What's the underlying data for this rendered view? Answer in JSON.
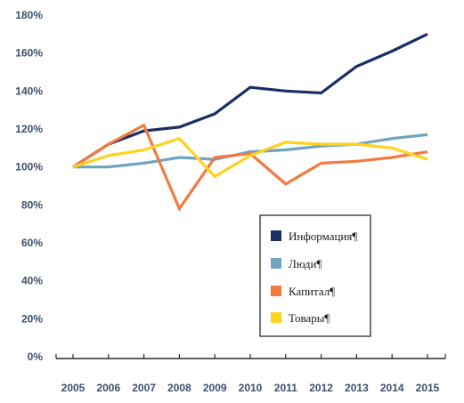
{
  "chart_data": {
    "type": "line",
    "title": "",
    "xlabel": "",
    "ylabel": "",
    "x": [
      "2005",
      "2006",
      "2007",
      "2008",
      "2009",
      "2010",
      "2011",
      "2012",
      "2013",
      "2014",
      "2015"
    ],
    "ylim": [
      0,
      180
    ],
    "yticks": [
      "0%",
      "20%",
      "40%",
      "60%",
      "80%",
      "100%",
      "120%",
      "140%",
      "160%",
      "180%"
    ],
    "ytick_values": [
      0,
      20,
      40,
      60,
      80,
      100,
      120,
      140,
      160,
      180
    ],
    "grid": false,
    "legend_position": "right-middle",
    "series": [
      {
        "name": "Информация¶",
        "color": "#1b2f66",
        "values": [
          100,
          112,
          119,
          121,
          128,
          142,
          140,
          139,
          153,
          161,
          170
        ]
      },
      {
        "name": "Люди¶",
        "color": "#6fa3bf",
        "values": [
          100,
          100,
          102,
          105,
          104,
          108,
          109,
          111,
          112,
          115,
          117
        ]
      },
      {
        "name": "Капитал¶",
        "color": "#f07a3f",
        "values": [
          100,
          112,
          122,
          78,
          105,
          107,
          91,
          102,
          103,
          105,
          108
        ]
      },
      {
        "name": "Товары¶",
        "color": "#ffd21c",
        "values": [
          100,
          106,
          109,
          115,
          95,
          106,
          113,
          112,
          112,
          110,
          104
        ]
      }
    ]
  }
}
